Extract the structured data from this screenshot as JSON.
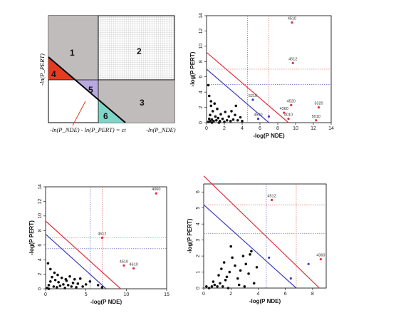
{
  "diagram": {
    "regions": [
      {
        "id": "1",
        "color": "#c0bcbc"
      },
      {
        "id": "2",
        "color": "#ffffff"
      },
      {
        "id": "3",
        "color": "#c0bcbc"
      },
      {
        "id": "4",
        "color": "#e63b1f"
      },
      {
        "id": "5",
        "color": "#b9a9e0"
      },
      {
        "id": "6",
        "color": "#7ed6c8"
      }
    ],
    "y_axis_label": "-ln(P_PERT)",
    "x_axis_label": "-ln(P_NDE)",
    "equation": "-ln(P_NDE) - ln(P_PERT) = ct"
  },
  "chart_data": [
    {
      "type": "scatter",
      "title": "",
      "xlabel": "-log(P NDE)",
      "ylabel": "-log(P PERT)",
      "xlim": [
        0,
        14
      ],
      "ylim": [
        0,
        14
      ],
      "xticks": [
        0,
        2,
        4,
        6,
        8,
        10,
        12,
        14
      ],
      "yticks": [
        0,
        2,
        4,
        6,
        8,
        10,
        12,
        14
      ],
      "vlines": [
        {
          "x": 4.6,
          "color": "#4a4ab8"
        },
        {
          "x": 7.0,
          "color": "#d94a4a"
        }
      ],
      "hlines": [
        {
          "y": 7.0,
          "color": "#d94a4a"
        },
        {
          "y": 5.0,
          "color": "#4a4ab8"
        }
      ],
      "red_line": {
        "from": [
          0,
          9.2
        ],
        "to": [
          9.2,
          0
        ]
      },
      "blue_line": {
        "from": [
          0,
          7.0
        ],
        "to": [
          7.0,
          0
        ]
      },
      "black_points": [
        [
          0.2,
          0.1
        ],
        [
          0.3,
          0.5
        ],
        [
          0.4,
          1.0
        ],
        [
          0.5,
          2.2
        ],
        [
          0.6,
          0.4
        ],
        [
          0.7,
          1.5
        ],
        [
          0.8,
          0.2
        ],
        [
          1.0,
          0.8
        ],
        [
          1.1,
          0.3
        ],
        [
          1.2,
          1.8
        ],
        [
          1.3,
          0.6
        ],
        [
          1.5,
          0.2
        ],
        [
          1.6,
          1.1
        ],
        [
          1.8,
          0.5
        ],
        [
          2.0,
          0.1
        ],
        [
          2.1,
          1.4
        ],
        [
          2.3,
          0.3
        ],
        [
          2.5,
          0.8
        ],
        [
          2.7,
          0.2
        ],
        [
          3.0,
          0.4
        ],
        [
          3.2,
          1.0
        ],
        [
          3.5,
          0.3
        ],
        [
          3.8,
          0.7
        ],
        [
          4.0,
          0.2
        ],
        [
          0.3,
          3.5
        ],
        [
          0.5,
          2.8
        ],
        [
          0.9,
          2.5
        ],
        [
          0.2,
          4.9
        ],
        [
          0.4,
          0.2
        ],
        [
          2.8,
          1.5
        ],
        [
          3.3,
          2.2
        ],
        [
          1.4,
          0.0
        ],
        [
          0.6,
          0.0
        ]
      ],
      "blue_points": [
        [
          5.2,
          3.0
        ],
        [
          5.8,
          0.5
        ],
        [
          7.0,
          0.8
        ]
      ],
      "red_points": [
        {
          "x": 9.6,
          "y": 13.1,
          "label": "4510"
        },
        {
          "x": 9.7,
          "y": 7.8,
          "label": "4512"
        },
        {
          "x": 9.5,
          "y": 2.3,
          "label": "4520"
        },
        {
          "x": 8.7,
          "y": 1.3,
          "label": "4360"
        },
        {
          "x": 9.2,
          "y": 0.5,
          "label": "4010"
        },
        {
          "x": 12.6,
          "y": 2.0,
          "label": "3320"
        },
        {
          "x": 12.3,
          "y": 0.3,
          "label": "5010"
        }
      ],
      "point_labels": [
        {
          "x": 5.2,
          "y": 3.0,
          "label": "5210"
        },
        {
          "x": 5.8,
          "y": 0.5,
          "label": "4530"
        }
      ]
    },
    {
      "type": "scatter",
      "title": "",
      "xlabel": "-log(P NDE)",
      "ylabel": "-log(P PERT)",
      "xlim": [
        0,
        15
      ],
      "ylim": [
        0,
        14
      ],
      "xticks": [
        0,
        5,
        10,
        15
      ],
      "yticks": [
        0,
        2,
        4,
        6,
        8,
        10,
        12,
        14
      ],
      "vlines": [
        {
          "x": 5.5,
          "color": "#4a4ab8"
        },
        {
          "x": 7.0,
          "color": "#d94a4a"
        }
      ],
      "hlines": [
        {
          "y": 7.0,
          "color": "#d94a4a"
        },
        {
          "y": 5.5,
          "color": "#4a4ab8"
        }
      ],
      "red_line": {
        "from": [
          0,
          9.3
        ],
        "to": [
          9.3,
          0
        ]
      },
      "blue_line": {
        "from": [
          0,
          7.5
        ],
        "to": [
          7.5,
          0
        ]
      },
      "black_points": [
        [
          0.2,
          0.1
        ],
        [
          0.4,
          0.5
        ],
        [
          0.6,
          1.0
        ],
        [
          0.8,
          1.6
        ],
        [
          1.0,
          0.3
        ],
        [
          1.2,
          1.2
        ],
        [
          1.4,
          0.2
        ],
        [
          1.6,
          0.9
        ],
        [
          1.8,
          0.4
        ],
        [
          2.0,
          1.5
        ],
        [
          2.2,
          0.6
        ],
        [
          2.4,
          0.1
        ],
        [
          2.6,
          1.1
        ],
        [
          2.8,
          0.5
        ],
        [
          3.0,
          1.7
        ],
        [
          3.2,
          0.3
        ],
        [
          3.4,
          0.8
        ],
        [
          3.6,
          1.3
        ],
        [
          3.8,
          0.2
        ],
        [
          4.0,
          0.7
        ],
        [
          4.3,
          1.4
        ],
        [
          4.6,
          0.3
        ],
        [
          5.0,
          0.6
        ],
        [
          6.5,
          0.5
        ],
        [
          7.0,
          0.2
        ],
        [
          0.3,
          3.5
        ],
        [
          0.6,
          2.7
        ],
        [
          1.1,
          2.2
        ],
        [
          0.4,
          0.0
        ],
        [
          1.5,
          1.9
        ],
        [
          2.5,
          1.3
        ],
        [
          5.5,
          1.0
        ]
      ],
      "blue_points": [],
      "red_points": [
        {
          "x": 13.7,
          "y": 13.1,
          "label": "4060"
        },
        {
          "x": 7.0,
          "y": 7.0,
          "label": "4512"
        },
        {
          "x": 9.7,
          "y": 3.2,
          "label": "4510"
        },
        {
          "x": 10.9,
          "y": 2.8,
          "label": "4610"
        }
      ],
      "point_labels": []
    },
    {
      "type": "scatter",
      "title": "",
      "xlabel": "-log(P NDE)",
      "ylabel": "-log(P PERT)",
      "xlim": [
        0,
        9
      ],
      "ylim": [
        0,
        6.5
      ],
      "xticks": [
        0,
        2,
        4,
        6,
        8
      ],
      "yticks": [
        0,
        1,
        2,
        3,
        4,
        5,
        6
      ],
      "vlines": [
        {
          "x": 4.6,
          "color": "#4a4ab8"
        },
        {
          "x": 6.8,
          "color": "#d94a4a"
        }
      ],
      "hlines": [
        {
          "y": 5.2,
          "color": "#d94a4a"
        },
        {
          "y": 3.4,
          "color": "#4a4ab8"
        }
      ],
      "red_line": {
        "from": [
          0,
          7.0
        ],
        "to": [
          8.5,
          0
        ]
      },
      "blue_line": {
        "from": [
          0,
          5.2
        ],
        "to": [
          6.8,
          0
        ]
      },
      "black_points": [
        [
          0.2,
          0.1
        ],
        [
          0.4,
          0.0
        ],
        [
          0.6,
          0.1
        ],
        [
          0.8,
          0.2
        ],
        [
          1.0,
          0.1
        ],
        [
          1.2,
          0.3
        ],
        [
          1.4,
          0.1
        ],
        [
          1.6,
          0.5
        ],
        [
          0.7,
          0.4
        ],
        [
          1.1,
          0.8
        ],
        [
          1.3,
          1.2
        ],
        [
          1.5,
          1.6
        ],
        [
          1.7,
          0.7
        ],
        [
          1.9,
          1.0
        ],
        [
          2.1,
          1.9
        ],
        [
          2.3,
          1.4
        ],
        [
          2.5,
          0.6
        ],
        [
          2.7,
          1.1
        ],
        [
          2.9,
          2.0
        ],
        [
          3.1,
          1.5
        ],
        [
          3.3,
          0.9
        ],
        [
          3.5,
          2.3
        ],
        [
          3.7,
          0.3
        ],
        [
          3.9,
          1.3
        ],
        [
          2.0,
          2.6
        ],
        [
          3.4,
          2.1
        ],
        [
          1.8,
          0.0
        ],
        [
          2.6,
          0.2
        ],
        [
          3.0,
          0.1
        ]
      ],
      "blue_points": [
        [
          4.8,
          1.9
        ],
        [
          6.4,
          0.6
        ],
        [
          7.7,
          1.5
        ]
      ],
      "red_points": [
        {
          "x": 5.0,
          "y": 5.5,
          "label": "4512"
        },
        {
          "x": 8.6,
          "y": 1.8,
          "label": "4360"
        }
      ],
      "point_labels": []
    }
  ]
}
